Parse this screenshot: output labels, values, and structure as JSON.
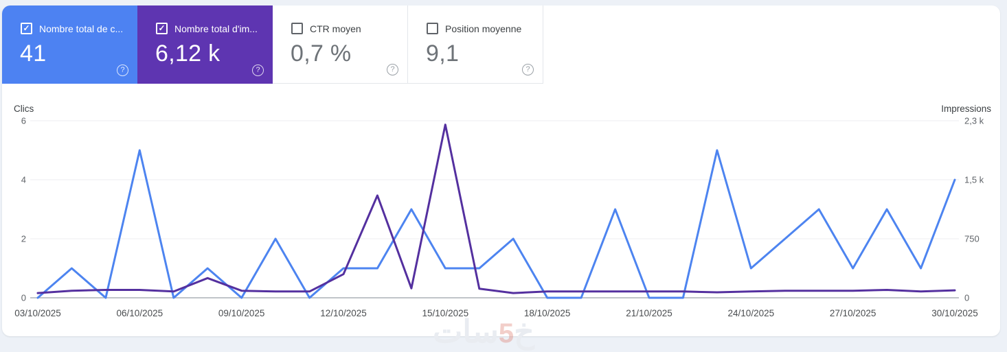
{
  "cards": [
    {
      "label": "Nombre total de c...",
      "value": "41",
      "checked": true,
      "bg": "#4d82f2"
    },
    {
      "label": "Nombre total d'im...",
      "value": "6,12 k",
      "checked": true,
      "bg": "#5e35b1"
    },
    {
      "label": "CTR moyen",
      "value": "0,7 %",
      "checked": false,
      "bg": "#ffffff"
    },
    {
      "label": "Position moyenne",
      "value": "9,1",
      "checked": false,
      "bg": "#ffffff"
    }
  ],
  "help_icon_glyph": "?",
  "check_glyph": "✓",
  "chart_data": {
    "type": "line",
    "x": [
      "03/10/2025",
      "04/10/2025",
      "05/10/2025",
      "06/10/2025",
      "07/10/2025",
      "08/10/2025",
      "09/10/2025",
      "10/10/2025",
      "11/10/2025",
      "12/10/2025",
      "13/10/2025",
      "14/10/2025",
      "15/10/2025",
      "16/10/2025",
      "17/10/2025",
      "18/10/2025",
      "19/10/2025",
      "20/10/2025",
      "21/10/2025",
      "22/10/2025",
      "23/10/2025",
      "24/10/2025",
      "25/10/2025",
      "26/10/2025",
      "27/10/2025",
      "28/10/2025",
      "29/10/2025",
      "30/10/2025"
    ],
    "x_tick_indices": [
      0,
      3,
      6,
      9,
      12,
      15,
      18,
      21,
      24,
      27
    ],
    "series": [
      {
        "name": "Clics",
        "axis": "left",
        "color": "#4d84f0",
        "values": [
          0,
          1,
          0,
          5,
          0,
          1,
          0,
          2,
          0,
          1,
          1,
          3,
          1,
          1,
          2,
          0,
          0,
          3,
          0,
          0,
          5,
          1,
          2,
          3,
          1,
          3,
          1,
          4
        ]
      },
      {
        "name": "Impressions",
        "axis": "right",
        "color": "#54309f",
        "values": [
          60,
          90,
          100,
          100,
          80,
          250,
          90,
          80,
          80,
          300,
          1300,
          120,
          2200,
          115,
          60,
          80,
          80,
          80,
          80,
          80,
          70,
          80,
          90,
          90,
          90,
          100,
          80,
          95
        ]
      }
    ],
    "left_axis": {
      "label": "Clics",
      "ticks": [
        "6",
        "4",
        "2",
        "0"
      ],
      "max": 6
    },
    "right_axis": {
      "label": "Impressions",
      "ticks": [
        "2,3 k",
        "1,5 k",
        "750",
        "0"
      ],
      "max": 2250
    },
    "grid": true,
    "legend_position": "none"
  },
  "watermark": {
    "prefix": "خ",
    "five": "5",
    "suffix": "سات"
  },
  "colors": {
    "page_bg": "#edf1f7",
    "panel_bg": "#ffffff",
    "clicks_accent": "#4d82f2",
    "impressions_accent": "#5e35b1",
    "gridline": "#edeef0",
    "baseline": "#9aa0a6",
    "tick_text": "#5f6368"
  }
}
